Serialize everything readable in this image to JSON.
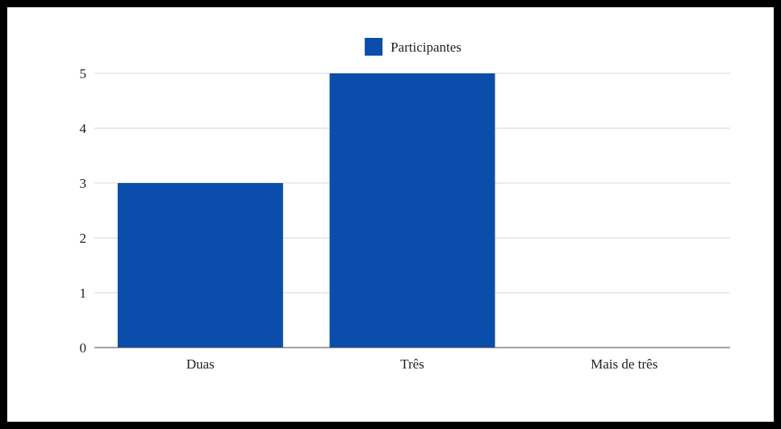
{
  "chart_data": {
    "type": "bar",
    "categories": [
      "Duas",
      "Três",
      "Mais de três"
    ],
    "series": [
      {
        "name": "Participantes",
        "values": [
          3,
          5,
          0
        ],
        "color": "#0a4dab"
      }
    ],
    "ylim": [
      0,
      5
    ],
    "yticks": [
      "0",
      "1",
      "2",
      "3",
      "4",
      "5"
    ],
    "grid": true,
    "legend_position": "top-center"
  }
}
